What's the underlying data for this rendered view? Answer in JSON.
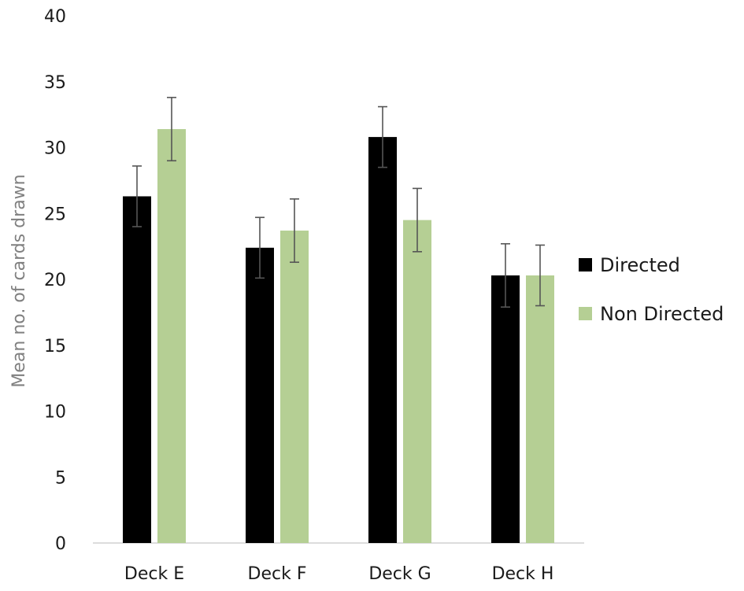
{
  "chart_data": {
    "type": "bar",
    "title": "",
    "xlabel": "",
    "ylabel": "Mean no. of cards drawn",
    "ylim": [
      0,
      40
    ],
    "yticks": [
      0,
      5,
      10,
      15,
      20,
      25,
      30,
      35,
      40
    ],
    "categories": [
      "Deck E",
      "Deck F",
      "Deck G",
      "Deck H"
    ],
    "series": [
      {
        "name": "Directed",
        "color": "#000000",
        "values": [
          26.3,
          22.4,
          30.8,
          20.3
        ],
        "error": [
          2.3,
          2.3,
          2.3,
          2.4
        ]
      },
      {
        "name": "Non Directed",
        "color": "#b5cf94",
        "values": [
          31.4,
          23.7,
          24.5,
          20.3
        ],
        "error": [
          2.4,
          2.4,
          2.4,
          2.3
        ]
      }
    ],
    "grid": false,
    "legend_position": "right",
    "error_bars": true
  }
}
